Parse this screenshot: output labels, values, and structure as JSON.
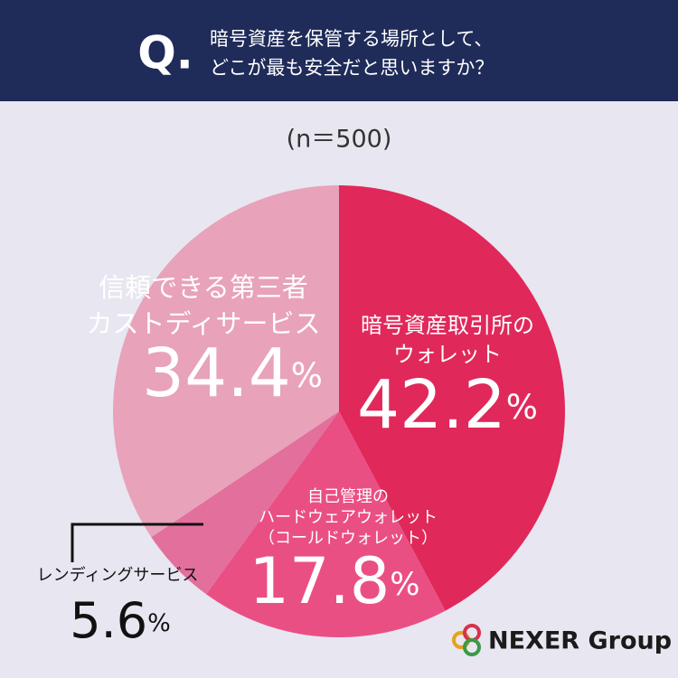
{
  "chart_data": {
    "type": "pie",
    "badge": "Q.",
    "title": "暗号資産を保管する場所として、どこが最も安全だと思いますか？",
    "subtitle": "(n＝500)",
    "categories": [
      "暗号資産取引所のウォレット",
      "自己管理のハードウェアウォレット（コールドウォレット）",
      "レンディングサービス",
      "信頼できる第三者カストディサービス"
    ],
    "values": [
      42.2,
      17.8,
      5.6,
      34.4
    ],
    "value_labels": [
      "42.2%",
      "17.8%",
      "5.6%",
      "34.4%"
    ],
    "colors": [
      "#e0285a",
      "#ea4f84",
      "#e36f9d",
      "#e8a2ba"
    ],
    "logo": "NEXER Group"
  }
}
